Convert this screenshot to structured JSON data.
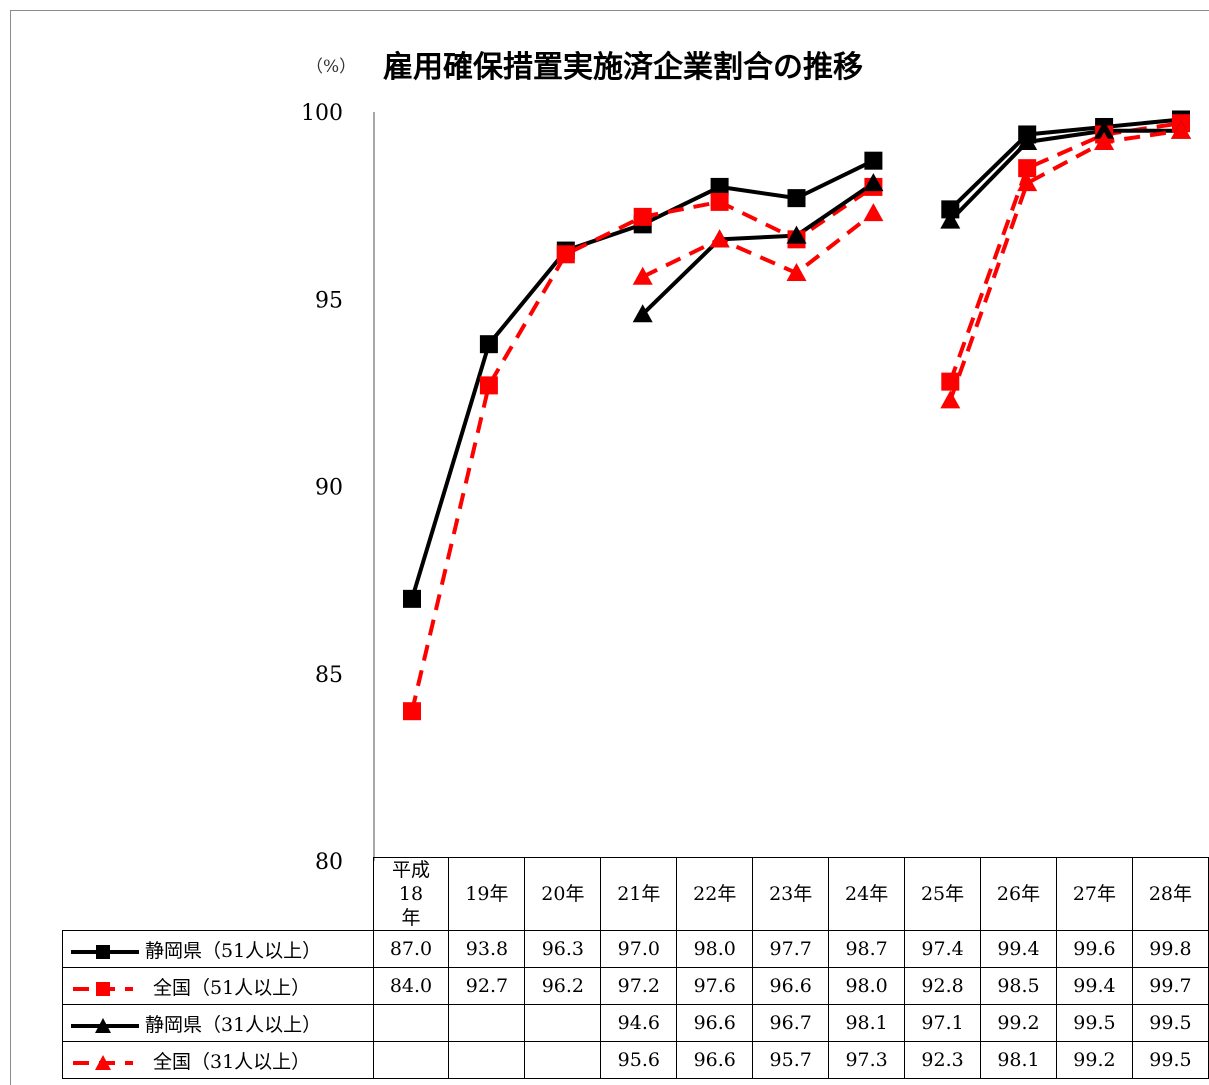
{
  "chart_data": {
    "type": "line",
    "title": "雇用確保措置実施済企業割合の推移",
    "ylabel": "（%）",
    "ylim": [
      80,
      100
    ],
    "yticks": [
      "80",
      "85",
      "90",
      "95",
      "100"
    ],
    "grid": false,
    "categories": [
      "平成18年",
      "19年",
      "20年",
      "21年",
      "22年",
      "23年",
      "24年",
      "25年",
      "26年",
      "27年",
      "28年"
    ],
    "series": [
      {
        "name": "静岡県（51人以上）",
        "color": "#000000",
        "dashed": false,
        "marker": "square",
        "values": [
          87.0,
          93.8,
          96.3,
          97.0,
          98.0,
          97.7,
          98.7,
          97.4,
          99.4,
          99.6,
          99.8
        ],
        "labels": [
          "87.0",
          "93.8",
          "96.3",
          "97.0",
          "98.0",
          "97.7",
          "98.7",
          "97.4",
          "99.4",
          "99.6",
          "99.8"
        ]
      },
      {
        "name": "全国（51人以上）",
        "color": "#ff0000",
        "dashed": true,
        "marker": "square",
        "values": [
          84.0,
          92.7,
          96.2,
          97.2,
          97.6,
          96.6,
          98.0,
          92.8,
          98.5,
          99.4,
          99.7
        ],
        "labels": [
          "84.0",
          "92.7",
          "96.2",
          "97.2",
          "97.6",
          "96.6",
          "98.0",
          "92.8",
          "98.5",
          "99.4",
          "99.7"
        ]
      },
      {
        "name": "静岡県（31人以上）",
        "color": "#000000",
        "dashed": false,
        "marker": "triangle",
        "values": [
          null,
          null,
          null,
          94.6,
          96.6,
          96.7,
          98.1,
          97.1,
          99.2,
          99.5,
          99.5
        ],
        "labels": [
          "",
          "",
          "",
          "94.6",
          "96.6",
          "96.7",
          "98.1",
          "97.1",
          "99.2",
          "99.5",
          "99.5"
        ]
      },
      {
        "name": "全国（31人以上）",
        "color": "#ff0000",
        "dashed": true,
        "marker": "triangle",
        "values": [
          null,
          null,
          null,
          95.6,
          96.6,
          95.7,
          97.3,
          92.3,
          98.1,
          99.2,
          99.5
        ],
        "labels": [
          "",
          "",
          "",
          "95.6",
          "96.6",
          "95.7",
          "97.3",
          "92.3",
          "98.1",
          "99.2",
          "99.5"
        ]
      }
    ]
  }
}
